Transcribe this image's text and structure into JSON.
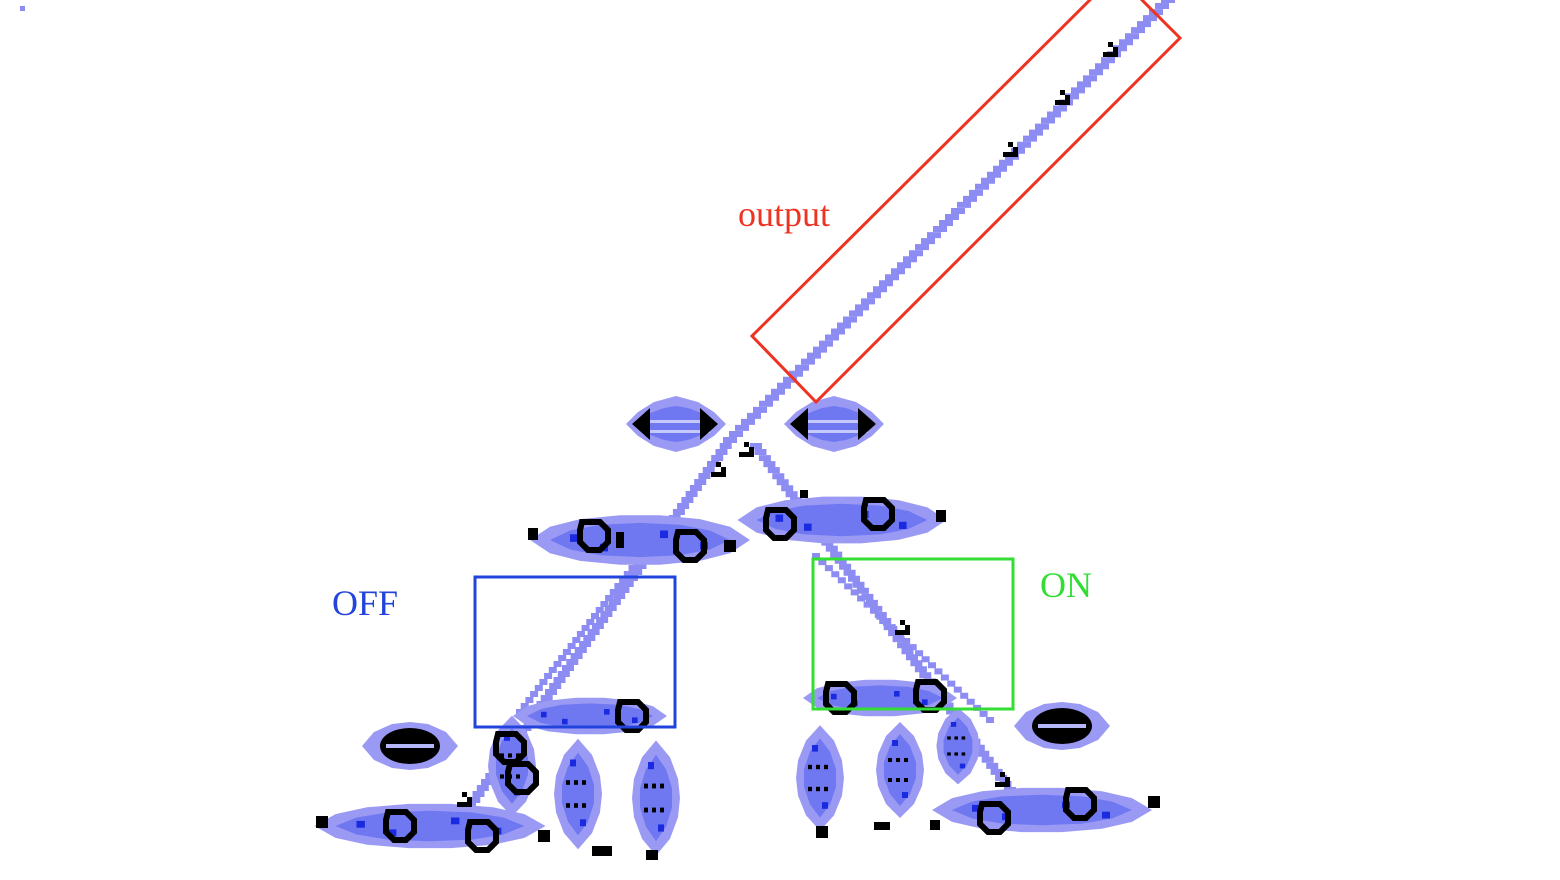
{
  "labels": {
    "output": "output",
    "off": "OFF",
    "on": "ON"
  },
  "colors": {
    "output": "#ee3322",
    "off": "#2244dd",
    "on": "#33dd33",
    "track": "#8c8cf2",
    "cell_light": "#9a9af5",
    "cell_mid": "#6f78f0",
    "cell_dark": "#1a2ae0",
    "live_cell": "#000000",
    "background": "#ffffff"
  }
}
